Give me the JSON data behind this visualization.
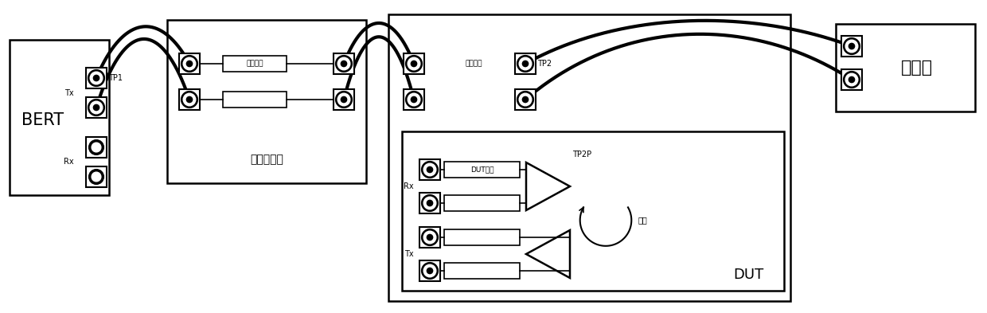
{
  "bg_color": "#ffffff",
  "bert_label": "BERT",
  "bert_tx_label": "Tx",
  "bert_rx_label": "Rx",
  "tp1_label": "TP1",
  "tp2_label": "TP2",
  "tp2p_label": "TP2P",
  "calib_board_label": "损耗校准板",
  "calib_channel_label": "校准通道",
  "mirror_channel_label": "镜像通道",
  "dut_channel_label": "DUT通道",
  "loopback_label": "环回",
  "dut_label": "DUT",
  "scope_label": "示波器",
  "font_size_large": 13,
  "font_size_medium": 9,
  "font_size_small": 7
}
